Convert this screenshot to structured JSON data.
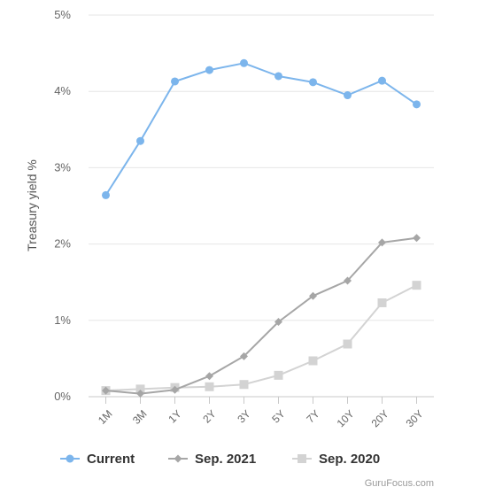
{
  "chart_data": {
    "type": "line",
    "title": "",
    "xlabel": "",
    "ylabel": "Treasury yield %",
    "categories": [
      "1M",
      "3M",
      "1Y",
      "2Y",
      "3Y",
      "5Y",
      "7Y",
      "10Y",
      "20Y",
      "30Y"
    ],
    "yticks": [
      "0%",
      "1%",
      "2%",
      "3%",
      "4%",
      "5%"
    ],
    "ylim": [
      0,
      5
    ],
    "grid": true,
    "legend_position": "bottom",
    "series": [
      {
        "name": "Current",
        "color": "#7cb5ec",
        "marker": "circle",
        "values": [
          2.64,
          3.35,
          4.13,
          4.28,
          4.37,
          4.2,
          4.12,
          3.95,
          4.14,
          3.83
        ]
      },
      {
        "name": "Sep. 2021",
        "color": "#a6a6a6",
        "marker": "diamond",
        "values": [
          0.08,
          0.04,
          0.09,
          0.27,
          0.53,
          0.98,
          1.32,
          1.52,
          2.02,
          2.08
        ]
      },
      {
        "name": "Sep. 2020",
        "color": "#d3d3d3",
        "marker": "square",
        "values": [
          0.08,
          0.1,
          0.12,
          0.13,
          0.16,
          0.28,
          0.47,
          0.69,
          1.23,
          1.46
        ]
      }
    ]
  },
  "credit": "GuruFocus.com"
}
